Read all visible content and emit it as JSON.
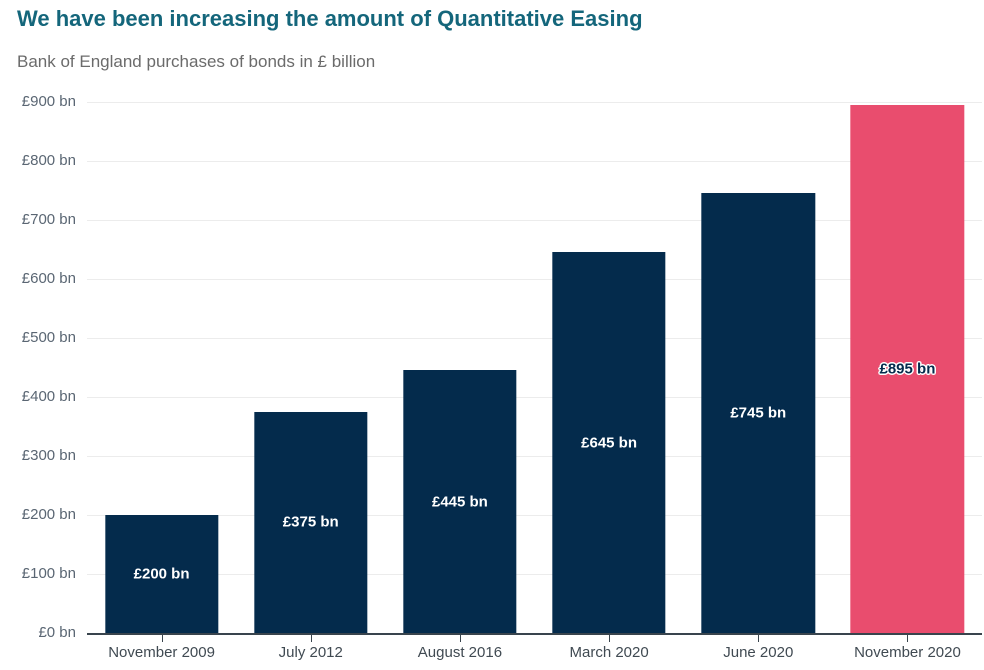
{
  "header": {
    "title": "We have been increasing the amount of Quantitative Easing",
    "subtitle": "Bank of England purchases of bonds in £ billion"
  },
  "chart_data": {
    "type": "bar",
    "title": "We have been increasing the amount of Quantitative Easing",
    "subtitle": "Bank of England purchases of bonds in £ billion",
    "categories": [
      "November 2009",
      "July 2012",
      "August 2016",
      "March 2020",
      "June 2020",
      "November 2020"
    ],
    "values": [
      200,
      375,
      445,
      645,
      745,
      895
    ],
    "bar_labels": [
      "£200 bn",
      "£375 bn",
      "£445 bn",
      "£645 bn",
      "£745 bn",
      "£895 bn"
    ],
    "highlight_index": 5,
    "xlabel": "",
    "ylabel": "£ billion",
    "ylim": [
      0,
      900
    ],
    "ytick_interval": 100,
    "ytick_labels": [
      "£0 bn",
      "£100 bn",
      "£200 bn",
      "£300 bn",
      "£400 bn",
      "£500 bn",
      "£600 bn",
      "£700 bn",
      "£800 bn",
      "£900 bn"
    ],
    "grid": "horizontal-only",
    "legend": "none",
    "colors": {
      "bar": "#042b4c",
      "highlight": "#e94d6e",
      "title": "#14667b",
      "subtitle": "#6b6b6b",
      "axis_line": "#39444d",
      "gridline": "#ececec",
      "y_tick_label": "#5a6673",
      "category_label": "#404a52",
      "bar_label_on_navy": "#ffffff",
      "bar_label_on_pink": "#042b4c"
    }
  }
}
